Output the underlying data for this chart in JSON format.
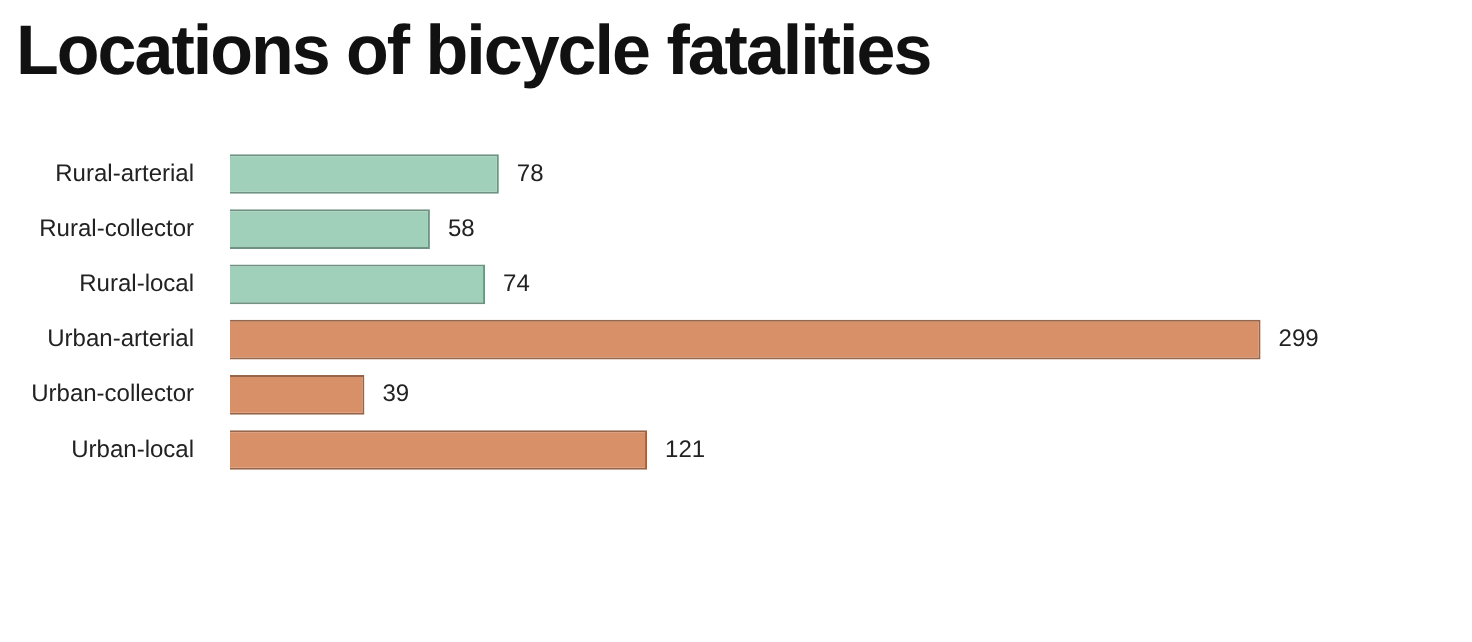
{
  "chart_data": {
    "type": "bar",
    "orientation": "horizontal",
    "title": "Locations of bicycle fatalities",
    "categories": [
      "Rural-arterial",
      "Rural-collector",
      "Rural-local",
      "Urban-arterial",
      "Urban-collector",
      "Urban-local"
    ],
    "values": [
      78,
      58,
      74,
      299,
      39,
      121
    ],
    "colors": [
      "#a0d0ba",
      "#a0d0ba",
      "#a0d0ba",
      "#d89069",
      "#d89069",
      "#d89069"
    ],
    "data_labels": true,
    "grid": false,
    "legend": false
  }
}
